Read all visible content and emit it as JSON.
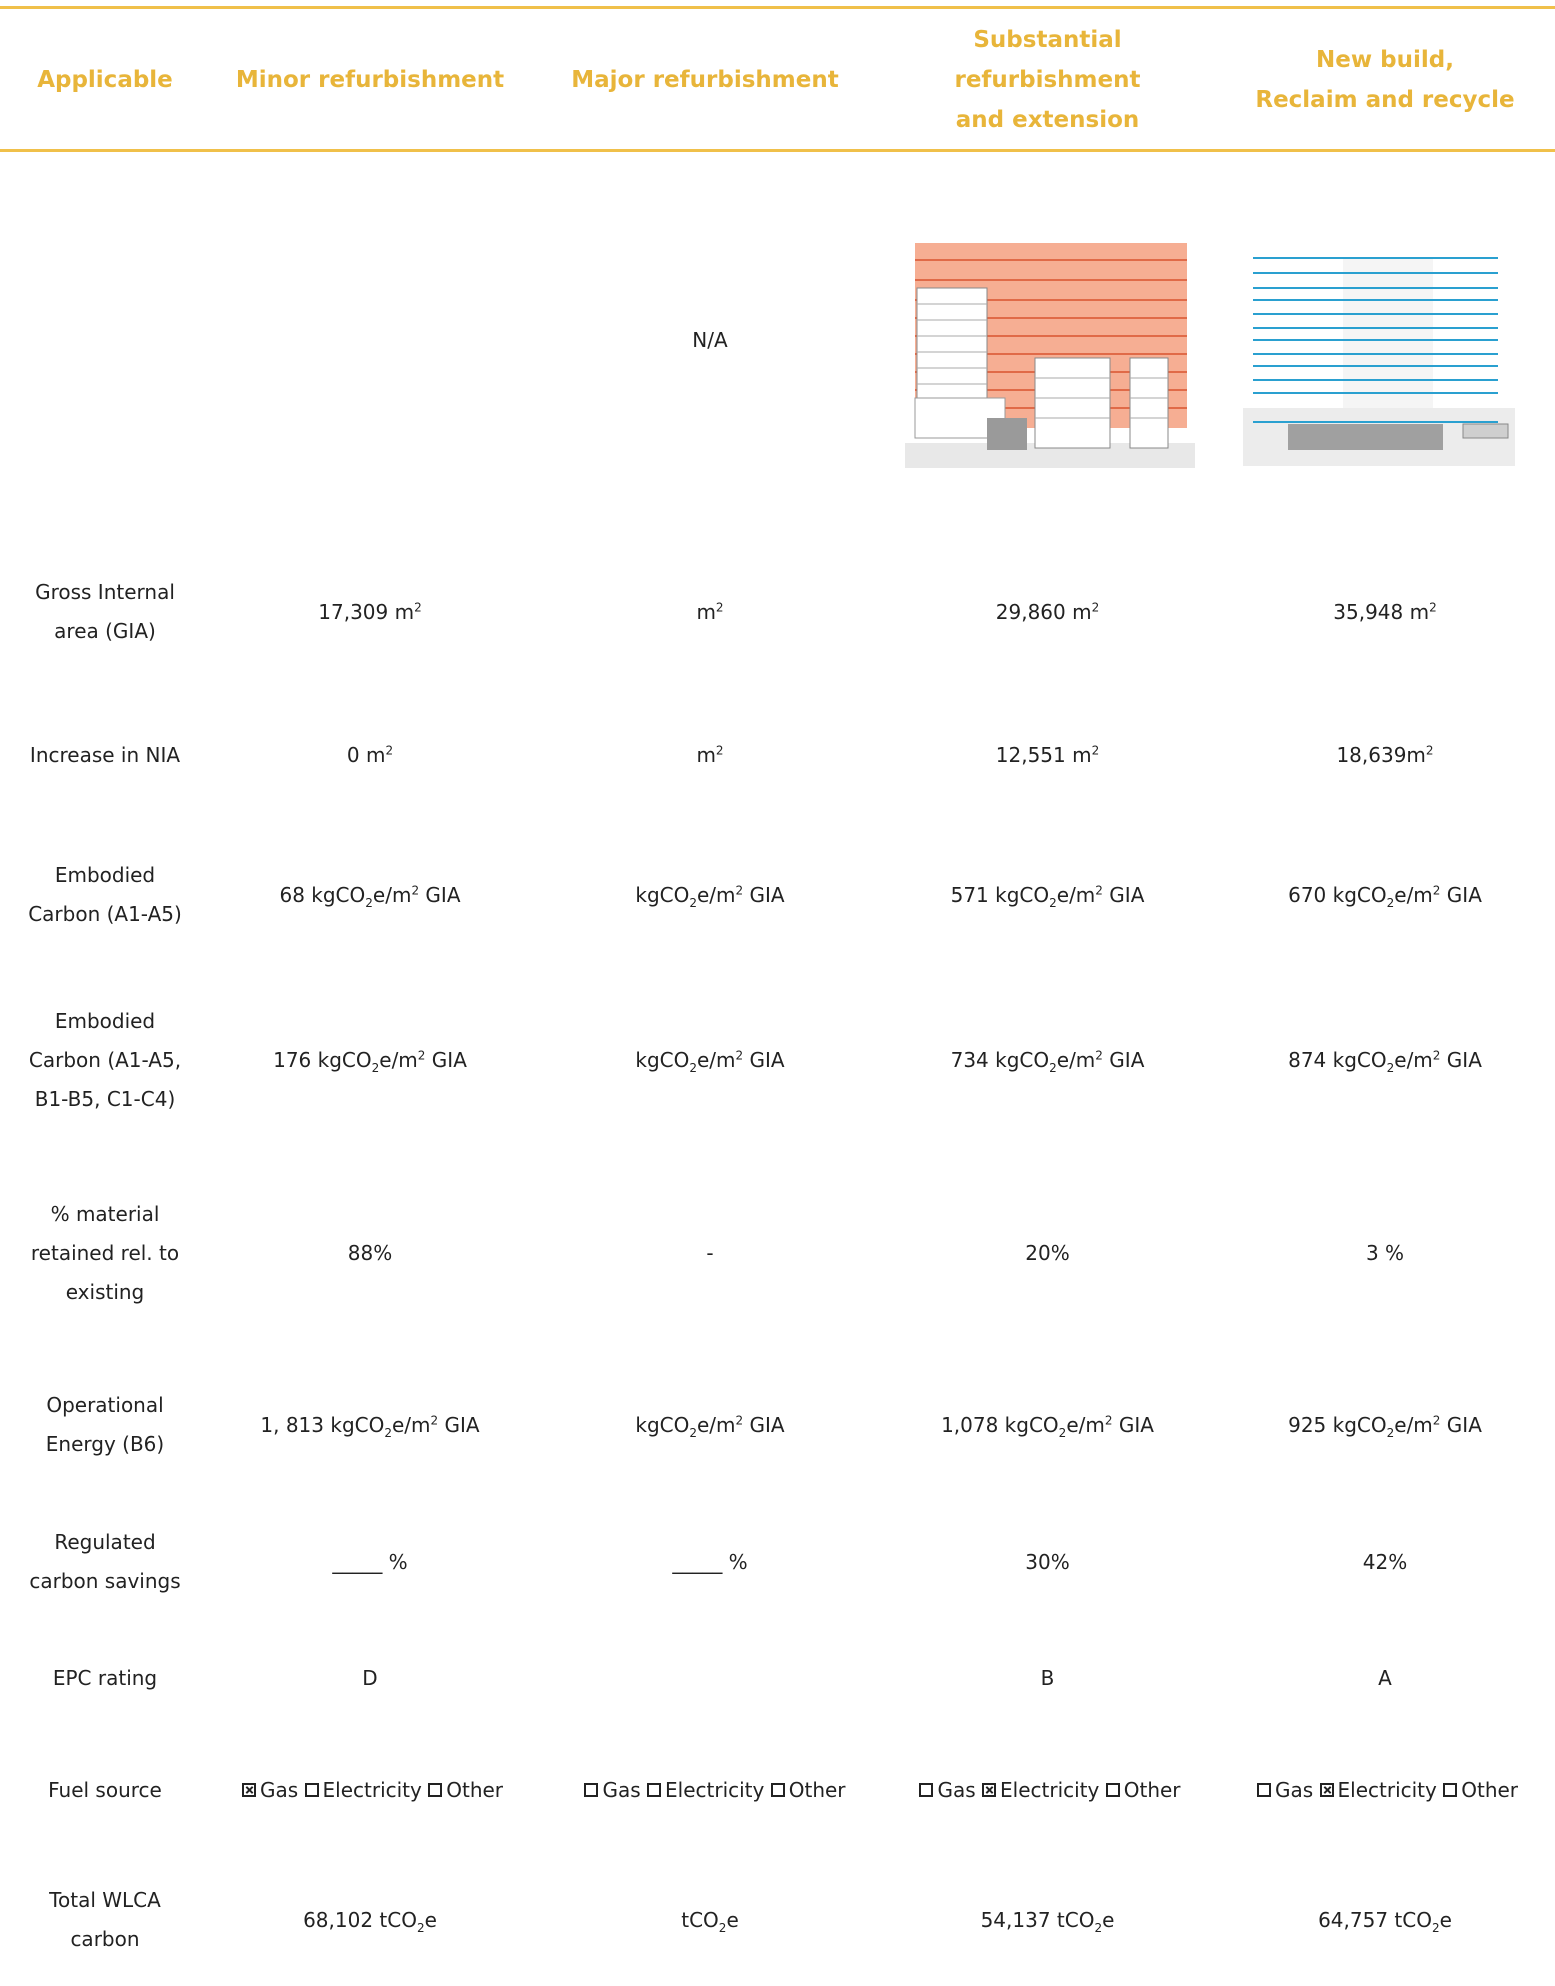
{
  "headers": [
    {
      "line1": "Applicable",
      "line2": ""
    },
    {
      "line1": "Minor refurbishment",
      "line2": ""
    },
    {
      "line1": "Major refurbishment",
      "line2": ""
    },
    {
      "line1": "Substantial refurbishment",
      "line2": "and extension"
    },
    {
      "line1": "New build,",
      "line2": "Reclaim and recycle"
    }
  ],
  "image_row": {
    "major": "N/A"
  },
  "rows": {
    "gia": {
      "label1": "Gross Internal",
      "label2": "area (GIA)",
      "minor": "17,309 m",
      "major": "m",
      "substantial": "29,860 m",
      "newbuild": "35,948 m",
      "sup": "2"
    },
    "nia": {
      "label": "Increase in NIA",
      "minor": "0 m",
      "major": "m",
      "substantial": "12,551 m",
      "newbuild": "18,639m",
      "sup": "2"
    },
    "ec1": {
      "label1": "Embodied",
      "label2": "Carbon (A1-A5)",
      "minor": "68 kgCO",
      "major": "kgCO",
      "substantial": "571 kgCO",
      "newbuild": "670 kgCO",
      "sub": "2",
      "mid": "e/m",
      "sup": "2",
      "tail": " GIA"
    },
    "ec2": {
      "label1": "Embodied",
      "label2": "Carbon (A1-A5,",
      "label3": "B1-B5, C1-C4)",
      "minor": "176 kgCO",
      "major": "kgCO",
      "substantial": "734 kgCO",
      "newbuild": "874 kgCO",
      "sub": "2",
      "mid": "e/m",
      "sup": "2",
      "tail": " GIA"
    },
    "retained": {
      "label1": "% material",
      "label2": "retained rel. to",
      "label3": "existing",
      "minor": "88%",
      "major": "-",
      "substantial": "20%",
      "newbuild": "3 %"
    },
    "op": {
      "label1": "Operational",
      "label2": "Energy (B6)",
      "minor": "1, 813 kgCO",
      "major": "kgCO",
      "substantial": "1,078 kgCO",
      "newbuild": "925 kgCO",
      "sub": "2",
      "mid": "e/m",
      "sup": "2",
      "tail": " GIA"
    },
    "reg": {
      "label1": "Regulated",
      "label2": "carbon savings",
      "minor": "_____ %",
      "major": "_____ %",
      "substantial": "30%",
      "newbuild": "42%"
    },
    "epc": {
      "label": "EPC rating",
      "minor": "D",
      "major": "",
      "substantial": "B",
      "newbuild": "A"
    },
    "fuel": {
      "label": "Fuel source",
      "gas": "Gas",
      "elec": "Electricity",
      "other": "Other",
      "minor": {
        "gas": true,
        "elec": false,
        "other": false
      },
      "major": {
        "gas": false,
        "elec": false,
        "other": false
      },
      "substantial": {
        "gas": false,
        "elec": true,
        "other": false
      },
      "newbuild": {
        "gas": false,
        "elec": true,
        "other": false
      }
    },
    "wlca": {
      "label1": "Total WLCA",
      "label2": "carbon",
      "minor": "68,102 tCO",
      "major": "tCO",
      "substantial": "54,137 tCO",
      "newbuild": "64,757 tCO",
      "sub": "2",
      "tail": "e"
    }
  },
  "colors": {
    "accent": "#e8b53a",
    "rule": "#f0c04a",
    "orange_overlay": "#f4a080",
    "blue_lines": "#2aa0d0"
  }
}
